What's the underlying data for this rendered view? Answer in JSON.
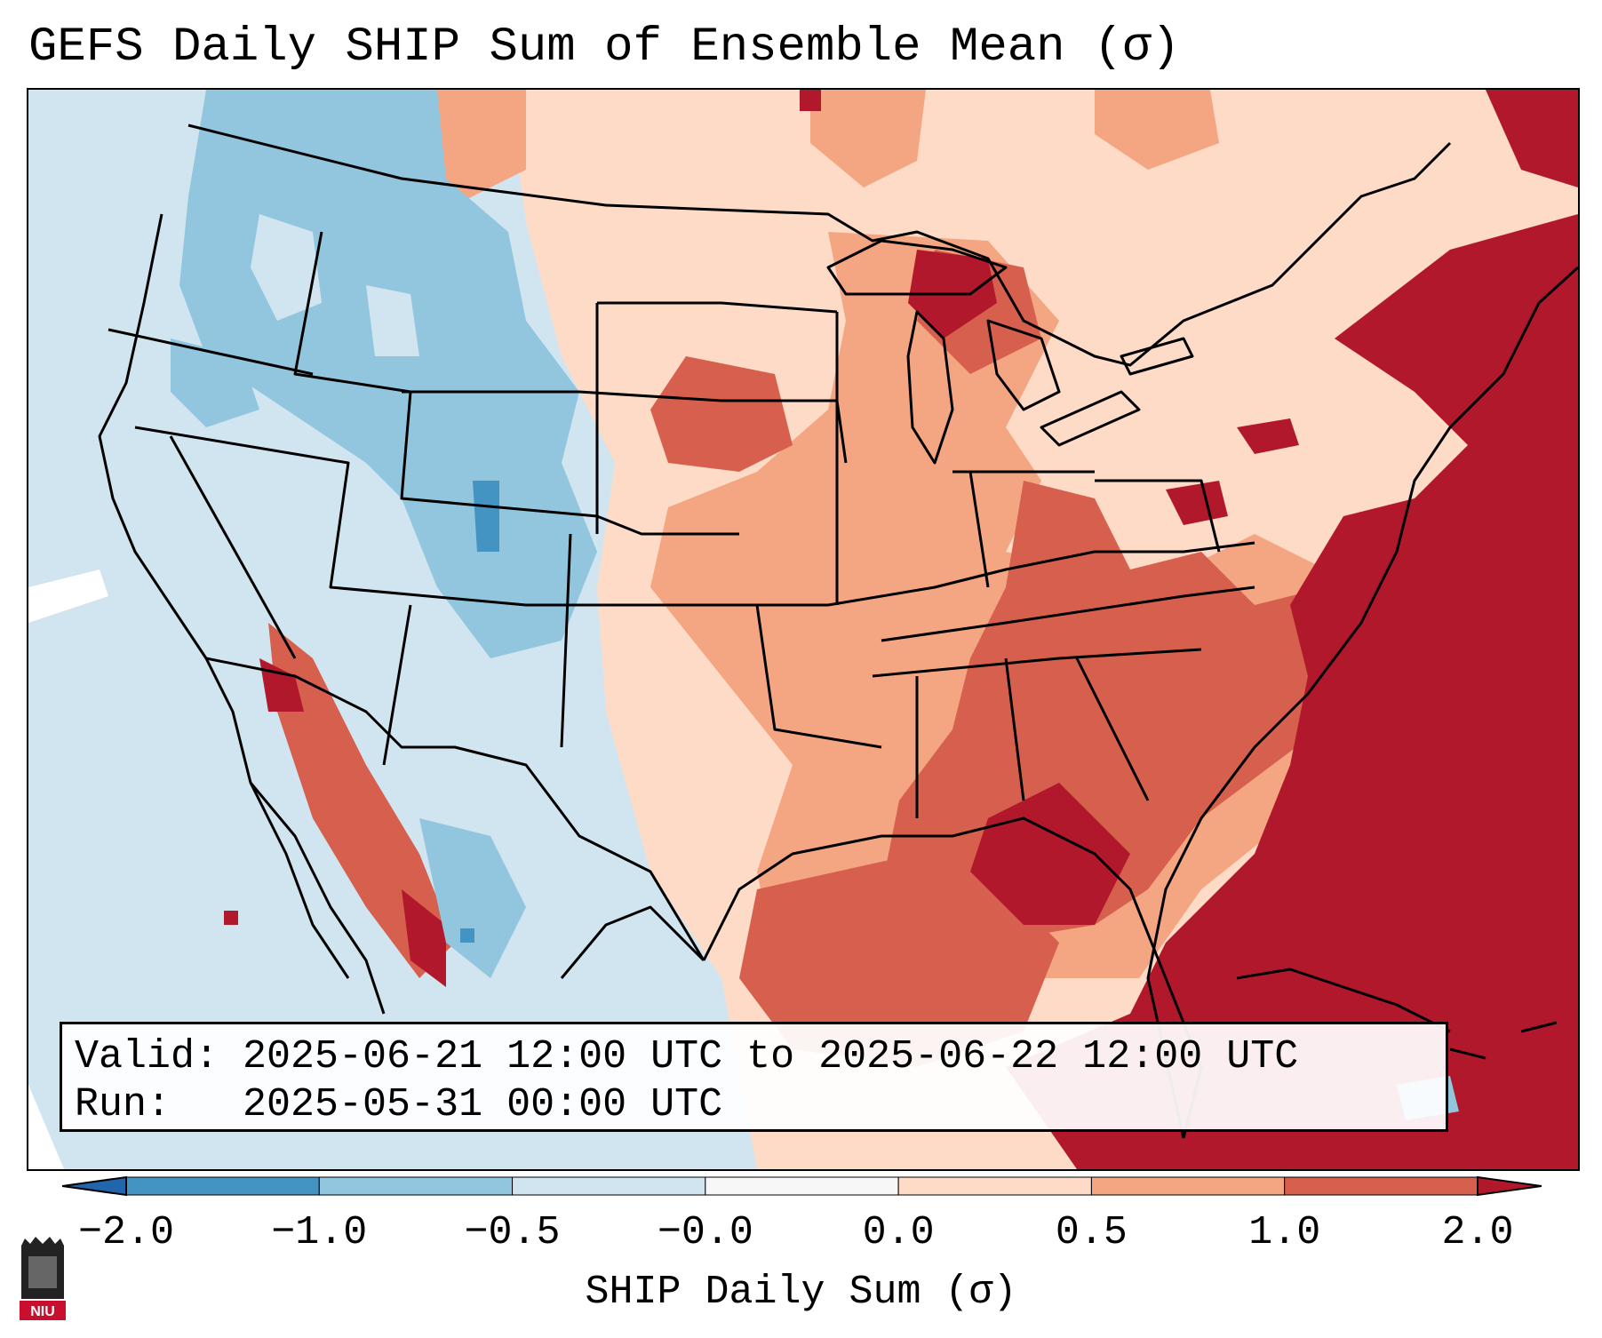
{
  "title": "GEFS Daily SHIP Sum of Ensemble Mean (σ)",
  "info": {
    "valid_line": "Valid: 2025-06-21 12:00 UTC to 2025-06-22 12:00 UTC",
    "run_line": "Run:   2025-05-31 00:00 UTC"
  },
  "colorbar": {
    "label": "SHIP Daily Sum (σ)",
    "ticks": [
      "−2.0",
      "−1.0",
      "−0.5",
      "−0.0",
      "0.0",
      "0.5",
      "1.0",
      "2.0"
    ],
    "bins": [
      {
        "from": -2.0,
        "to": -1.0,
        "color": "#4393c3"
      },
      {
        "from": -1.0,
        "to": -0.5,
        "color": "#92c5de"
      },
      {
        "from": -0.5,
        "to": -0.0,
        "color": "#d1e5f0"
      },
      {
        "from": -0.0,
        "to": 0.0,
        "color": "#f7f7f7"
      },
      {
        "from": 0.0,
        "to": 0.5,
        "color": "#fddbc7"
      },
      {
        "from": 0.5,
        "to": 1.0,
        "color": "#f4a582"
      },
      {
        "from": 1.0,
        "to": 2.0,
        "color": "#d6604d"
      }
    ],
    "under_color": "#2166ac",
    "over_color": "#b2182b"
  },
  "logo": {
    "text": "NIU",
    "color": "#c8102e"
  }
}
